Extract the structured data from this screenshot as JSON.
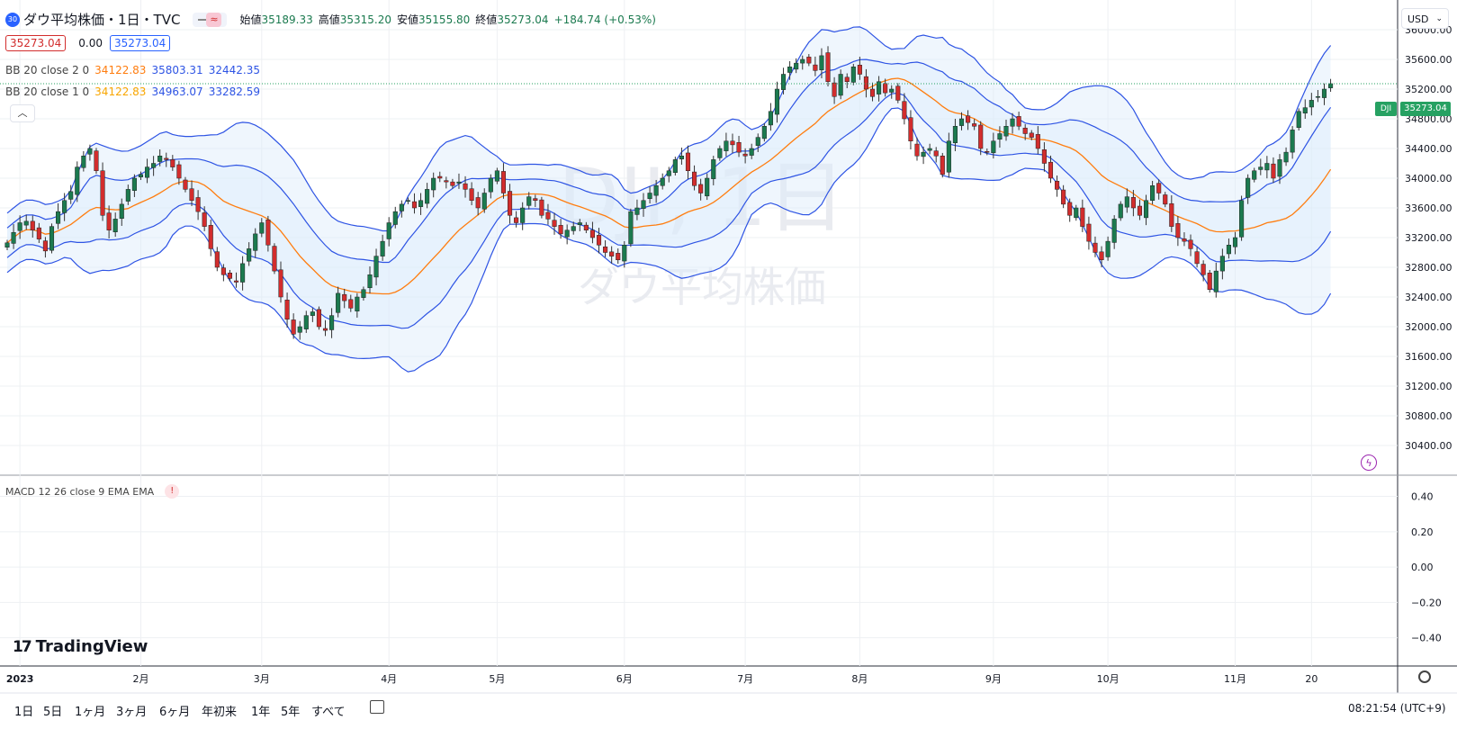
{
  "header": {
    "symbol_badge": "30",
    "title": "ダウ平均株価・1日・TVC",
    "ohlc": {
      "open_label": "始値",
      "open": "35189.33",
      "high_label": "高値",
      "high": "35315.20",
      "low_label": "安値",
      "low": "35155.80",
      "close_label": "終値",
      "close": "35273.04",
      "change": "+184.74 (+0.53%)"
    },
    "bid": "35273.04",
    "spread": "0.00",
    "ask": "35273.04"
  },
  "indicators": {
    "bb2": {
      "label": "BB 20 close 2 0",
      "basis": "34122.83",
      "upper": "35803.31",
      "lower": "32442.35"
    },
    "bb1": {
      "label": "BB 20 close 1 0",
      "basis": "34122.83",
      "upper": "34963.07",
      "lower": "33282.59"
    },
    "macd": {
      "label": "MACD 12 26 close 9 EMA EMA",
      "warn": "!"
    }
  },
  "watermark": {
    "symbol": "DJI, 1日",
    "name": "ダウ平均株価"
  },
  "price_scale": {
    "currency": "USD",
    "last_price": "35273.04",
    "last_tag": "DJI"
  },
  "logo": {
    "text": "TradingView"
  },
  "timeframes": [
    "1日",
    "5日",
    "1ヶ月",
    "3ヶ月",
    "6ヶ月",
    "年初来",
    "1年",
    "5年",
    "すべて"
  ],
  "footer": {
    "time": "08:21:54 (UTC+9)"
  },
  "colors": {
    "up": "#1b7a4f",
    "down": "#d22d2d",
    "band": "#2e54e4",
    "basis": "#ff7d0f",
    "band_fill": "#dbeafb",
    "grid": "#eef0f3",
    "last_price_tag": "#26a162"
  },
  "chart_data": [
    {
      "type": "candlestick",
      "title": "",
      "ylim": [
        30000,
        36400
      ],
      "yticks": [
        30400,
        30800,
        31200,
        31600,
        32000,
        32400,
        32800,
        33200,
        33600,
        34000,
        34400,
        34800,
        35200,
        35600,
        36000
      ],
      "x_labels": [
        {
          "label": "2023",
          "index": 2
        },
        {
          "label": "2月",
          "index": 21
        },
        {
          "label": "3月",
          "index": 40
        },
        {
          "label": "4月",
          "index": 60
        },
        {
          "label": "5月",
          "index": 77
        },
        {
          "label": "6月",
          "index": 97
        },
        {
          "label": "7月",
          "index": 116
        },
        {
          "label": "8月",
          "index": 134
        },
        {
          "label": "9月",
          "index": 155
        },
        {
          "label": "10月",
          "index": 173
        },
        {
          "label": "11月",
          "index": 193
        },
        {
          "label": "20",
          "index": 205
        }
      ],
      "closes": [
        33130,
        33270,
        33400,
        33420,
        33300,
        33180,
        33020,
        33350,
        33550,
        33700,
        33820,
        34150,
        34300,
        34400,
        34100,
        33500,
        33300,
        33450,
        33650,
        33850,
        34000,
        34050,
        34150,
        34200,
        34300,
        34250,
        34150,
        34000,
        33850,
        33700,
        33550,
        33350,
        33050,
        32800,
        32700,
        32650,
        32600,
        32850,
        33050,
        33250,
        33400,
        33100,
        32750,
        32400,
        32100,
        31900,
        32000,
        32150,
        32200,
        32000,
        31950,
        32150,
        32450,
        32350,
        32250,
        32400,
        32500,
        32700,
        32950,
        33150,
        33400,
        33550,
        33650,
        33700,
        33600,
        33700,
        33850,
        34000,
        34000,
        33950,
        33900,
        33950,
        33850,
        33700,
        33600,
        33800,
        34000,
        34100,
        33800,
        33500,
        33400,
        33600,
        33750,
        33700,
        33500,
        33450,
        33350,
        33250,
        33300,
        33350,
        33400,
        33300,
        33200,
        33100,
        33000,
        32950,
        32900,
        33100,
        33550,
        33600,
        33700,
        33800,
        33900,
        34000,
        34100,
        34250,
        34300,
        34100,
        33900,
        33800,
        34000,
        34250,
        34400,
        34500,
        34450,
        34350,
        34300,
        34400,
        34550,
        34700,
        34900,
        35200,
        35400,
        35500,
        35550,
        35600,
        35550,
        35450,
        35650,
        35300,
        35100,
        35400,
        35300,
        35500,
        35400,
        35200,
        35100,
        35300,
        35150,
        35200,
        35050,
        34800,
        34500,
        34300,
        34350,
        34400,
        34300,
        34050,
        34500,
        34700,
        34800,
        34750,
        34700,
        34400,
        34350,
        34500,
        34600,
        34700,
        34800,
        34700,
        34600,
        34550,
        34400,
        34200,
        34000,
        33850,
        33650,
        33500,
        33600,
        33350,
        33150,
        33000,
        32900,
        33150,
        33450,
        33650,
        33750,
        33600,
        33500,
        33700,
        33900,
        33800,
        33650,
        33350,
        33200,
        33150,
        33050,
        32850,
        32700,
        32500,
        32750,
        32950,
        33100,
        33200,
        33700,
        34000,
        34100,
        34150,
        34200,
        34000,
        34250,
        34350,
        34650,
        34900,
        34950,
        35050,
        35100,
        35200,
        35273
      ]
    },
    {
      "type": "line",
      "title": "MACD 12 26 close 9 EMA EMA",
      "ylim": [
        -0.56,
        0.52
      ],
      "yticks": [
        0.4,
        0.2,
        0.0,
        -0.2,
        -0.4
      ],
      "ytick_labels": [
        "0.40",
        "0.20",
        "0.00",
        "−0.20",
        "−0.40"
      ],
      "series": []
    }
  ]
}
